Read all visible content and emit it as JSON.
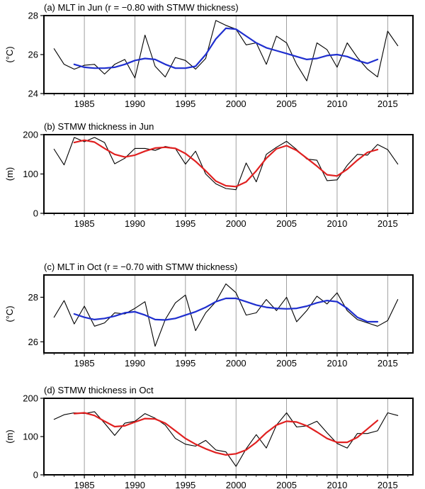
{
  "colors": {
    "raw": "#000000",
    "smooth_mlt": "#1f2fcf",
    "smooth_thk": "#e02020",
    "grid": "#888888"
  },
  "chart_data": [
    {
      "type": "line",
      "title": "(a) MLT in Jun (r = −0.80 with STMW thickness)",
      "ylabel": "(°C)",
      "xlim": [
        1981,
        2017.5
      ],
      "ylim": [
        24,
        28
      ],
      "xticks": [
        1985,
        1990,
        1995,
        2000,
        2005,
        2010,
        2015
      ],
      "yticks": [
        24,
        26,
        28
      ],
      "grid": "vertical",
      "series": [
        {
          "style": "raw",
          "x": [
            1982,
            1983,
            1984,
            1985,
            1986,
            1987,
            1988,
            1989,
            1990,
            1991,
            1992,
            1993,
            1994,
            1995,
            1996,
            1997,
            1998,
            1999,
            2000,
            2001,
            2002,
            2003,
            2004,
            2005,
            2006,
            2007,
            2008,
            2009,
            2010,
            2011,
            2012,
            2013,
            2014,
            2015,
            2016
          ],
          "y": [
            26.3,
            25.5,
            25.25,
            25.45,
            25.5,
            25.0,
            25.5,
            25.75,
            24.8,
            27.0,
            25.4,
            24.85,
            25.85,
            25.7,
            25.25,
            25.8,
            27.75,
            27.5,
            27.3,
            26.5,
            26.6,
            25.5,
            26.95,
            26.6,
            25.5,
            24.65,
            26.6,
            26.25,
            25.35,
            26.6,
            25.85,
            25.25,
            24.85,
            27.2,
            26.45
          ]
        },
        {
          "style": "smooth_mlt",
          "x": [
            1984,
            1985,
            1986,
            1987,
            1988,
            1989,
            1990,
            1991,
            1992,
            1993,
            1994,
            1995,
            1996,
            1997,
            1998,
            1999,
            2000,
            2001,
            2002,
            2003,
            2004,
            2005,
            2006,
            2007,
            2008,
            2009,
            2010,
            2011,
            2012,
            2013,
            2014
          ],
          "y": [
            25.5,
            25.35,
            25.3,
            25.3,
            25.35,
            25.5,
            25.7,
            25.8,
            25.75,
            25.5,
            25.3,
            25.3,
            25.4,
            26.0,
            26.8,
            27.35,
            27.3,
            26.95,
            26.6,
            26.35,
            26.2,
            26.05,
            25.9,
            25.75,
            25.8,
            25.95,
            26.0,
            25.9,
            25.7,
            25.55,
            25.75
          ]
        }
      ]
    },
    {
      "type": "line",
      "title": "(b) STMW thickness in Jun",
      "ylabel": "(m)",
      "xlim": [
        1981,
        2017.5
      ],
      "ylim": [
        0,
        200
      ],
      "xticks": [
        1985,
        1990,
        1995,
        2000,
        2005,
        2010,
        2015
      ],
      "yticks": [
        0,
        100,
        200
      ],
      "grid": "vertical",
      "series": [
        {
          "style": "raw",
          "x": [
            1982,
            1983,
            1984,
            1985,
            1986,
            1987,
            1988,
            1989,
            1990,
            1991,
            1992,
            1993,
            1994,
            1995,
            1996,
            1997,
            1998,
            1999,
            2000,
            2001,
            2002,
            2003,
            2004,
            2005,
            2006,
            2007,
            2008,
            2009,
            2010,
            2011,
            2012,
            2013,
            2014,
            2015,
            2016
          ],
          "y": [
            163,
            123,
            193,
            182,
            193,
            180,
            126,
            140,
            165,
            165,
            160,
            170,
            165,
            125,
            158,
            100,
            75,
            63,
            60,
            128,
            80,
            150,
            168,
            183,
            162,
            138,
            135,
            83,
            85,
            122,
            150,
            148,
            175,
            162,
            125
          ]
        },
        {
          "style": "smooth_thk",
          "x": [
            1984,
            1985,
            1986,
            1987,
            1988,
            1989,
            1990,
            1991,
            1992,
            1993,
            1994,
            1995,
            1996,
            1997,
            1998,
            1999,
            2000,
            2001,
            2002,
            2003,
            2004,
            2005,
            2006,
            2007,
            2008,
            2009,
            2010,
            2011,
            2012,
            2013,
            2014
          ],
          "y": [
            180,
            186,
            181,
            165,
            150,
            143,
            148,
            158,
            166,
            168,
            165,
            152,
            132,
            108,
            82,
            70,
            68,
            80,
            108,
            140,
            164,
            172,
            160,
            140,
            120,
            98,
            95,
            112,
            135,
            155,
            162
          ]
        }
      ]
    },
    {
      "type": "line",
      "title": "(c) MLT in Oct (r = −0.70 with STMW thickness)",
      "ylabel": "(°C)",
      "xlim": [
        1981,
        2017.5
      ],
      "ylim": [
        25.5,
        29
      ],
      "xticks": [
        1985,
        1990,
        1995,
        2000,
        2005,
        2010,
        2015
      ],
      "yticks": [
        26,
        28
      ],
      "grid": "vertical",
      "series": [
        {
          "style": "raw",
          "x": [
            1982,
            1983,
            1984,
            1985,
            1986,
            1987,
            1988,
            1989,
            1990,
            1991,
            1992,
            1993,
            1994,
            1995,
            1996,
            1997,
            1998,
            1999,
            2000,
            2001,
            2002,
            2003,
            2004,
            2005,
            2006,
            2007,
            2008,
            2009,
            2010,
            2011,
            2012,
            2013,
            2014,
            2015,
            2016
          ],
          "y": [
            27.1,
            27.85,
            26.8,
            27.6,
            26.7,
            26.85,
            27.3,
            27.25,
            27.5,
            27.8,
            25.8,
            27.0,
            27.75,
            28.1,
            26.5,
            27.3,
            27.8,
            28.6,
            28.2,
            27.2,
            27.3,
            27.9,
            27.4,
            28.0,
            26.9,
            27.4,
            28.05,
            27.7,
            28.2,
            27.4,
            27.0,
            26.85,
            26.7,
            26.95,
            27.9
          ]
        },
        {
          "style": "smooth_mlt",
          "x": [
            1984,
            1985,
            1986,
            1987,
            1988,
            1989,
            1990,
            1991,
            1992,
            1993,
            1994,
            1995,
            1996,
            1997,
            1998,
            1999,
            2000,
            2001,
            2002,
            2003,
            2004,
            2005,
            2006,
            2007,
            2008,
            2009,
            2010,
            2011,
            2012,
            2013,
            2014
          ],
          "y": [
            27.25,
            27.1,
            27.0,
            27.05,
            27.15,
            27.3,
            27.35,
            27.2,
            27.0,
            26.98,
            27.05,
            27.2,
            27.35,
            27.55,
            27.8,
            27.95,
            27.95,
            27.8,
            27.65,
            27.55,
            27.5,
            27.48,
            27.5,
            27.6,
            27.75,
            27.85,
            27.8,
            27.5,
            27.1,
            26.9,
            26.9
          ]
        }
      ]
    },
    {
      "type": "line",
      "title": "(d) STMW thickness in Oct",
      "ylabel": "(m)",
      "xlim": [
        1981,
        2017.5
      ],
      "ylim": [
        0,
        200
      ],
      "xticks": [
        1985,
        1990,
        1995,
        2000,
        2005,
        2010,
        2015
      ],
      "yticks": [
        0,
        100,
        200
      ],
      "grid": "vertical",
      "series": [
        {
          "style": "raw",
          "x": [
            1982,
            1983,
            1984,
            1985,
            1986,
            1987,
            1988,
            1989,
            1990,
            1991,
            1992,
            1993,
            1994,
            1995,
            1996,
            1997,
            1998,
            1999,
            2000,
            2001,
            2002,
            2003,
            2004,
            2005,
            2006,
            2007,
            2008,
            2009,
            2010,
            2011,
            2012,
            2013,
            2014,
            2015,
            2016
          ],
          "y": [
            145,
            157,
            162,
            160,
            165,
            135,
            103,
            135,
            140,
            160,
            148,
            130,
            95,
            80,
            75,
            90,
            65,
            60,
            22,
            68,
            105,
            70,
            130,
            162,
            125,
            128,
            140,
            110,
            82,
            70,
            108,
            108,
            115,
            162,
            155
          ]
        },
        {
          "style": "smooth_thk",
          "x": [
            1984,
            1985,
            1986,
            1987,
            1988,
            1989,
            1990,
            1991,
            1992,
            1993,
            1994,
            1995,
            1996,
            1997,
            1998,
            1999,
            2000,
            2001,
            2002,
            2003,
            2004,
            2005,
            2006,
            2007,
            2008,
            2009,
            2010,
            2011,
            2012,
            2013,
            2014
          ],
          "y": [
            160,
            162,
            155,
            140,
            126,
            128,
            138,
            147,
            146,
            135,
            115,
            95,
            80,
            68,
            58,
            52,
            55,
            65,
            85,
            110,
            130,
            140,
            138,
            128,
            112,
            95,
            85,
            85,
            98,
            120,
            142
          ]
        }
      ]
    }
  ]
}
